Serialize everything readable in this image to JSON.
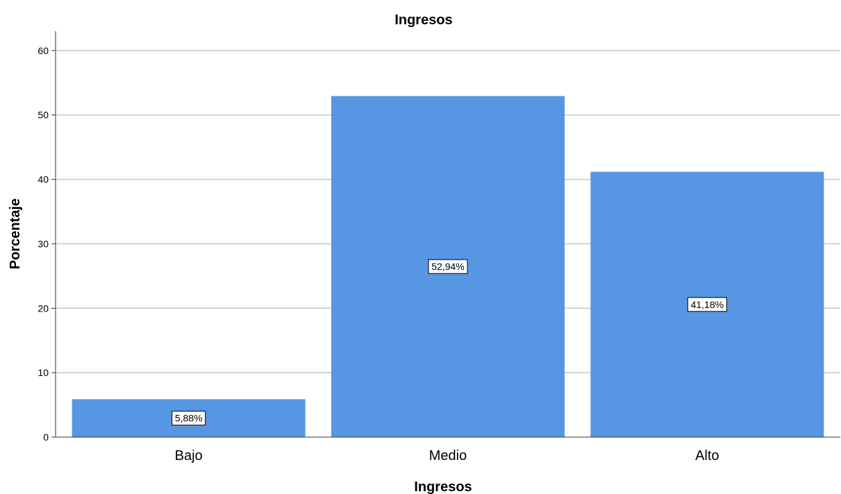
{
  "chart_data": {
    "type": "bar",
    "title": "Ingresos",
    "xlabel": "Ingresos",
    "ylabel": "Porcentaje",
    "categories": [
      "Bajo",
      "Medio",
      "Alto"
    ],
    "values": [
      5.88,
      52.94,
      41.18
    ],
    "data_labels": [
      "5,88%",
      "52,94%",
      "41,18%"
    ],
    "ylim": [
      0,
      63
    ],
    "yticks": [
      0,
      10,
      20,
      30,
      40,
      50,
      60
    ],
    "grid": true,
    "legend": "none",
    "bar_color": "#5796e3"
  }
}
